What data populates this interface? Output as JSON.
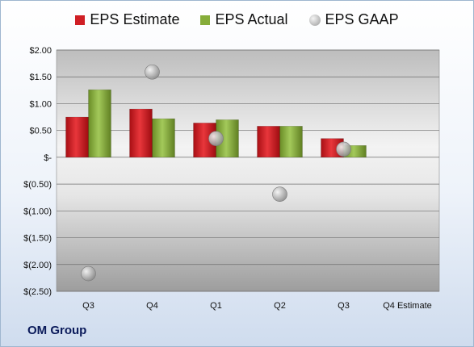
{
  "chart_data": {
    "type": "bar",
    "categories": [
      "Q3",
      "Q4",
      "Q1",
      "Q2",
      "Q3",
      "Q4 Estimate"
    ],
    "series": [
      {
        "name": "EPS Estimate",
        "type": "bar",
        "color": "#d01f25",
        "values": [
          0.75,
          0.9,
          0.64,
          0.58,
          0.35,
          null
        ]
      },
      {
        "name": "EPS Actual",
        "type": "bar",
        "color": "#86ad3a",
        "values": [
          1.26,
          0.72,
          0.7,
          0.58,
          0.22,
          null
        ]
      },
      {
        "name": "EPS GAAP",
        "type": "scatter",
        "color": "#a0a0a0",
        "values": [
          -2.17,
          1.59,
          0.35,
          -0.69,
          0.15,
          null
        ]
      }
    ],
    "yticks": [
      "$2.00",
      "$1.50",
      "$1.00",
      "$0.50",
      "$-",
      "$(0.50)",
      "$(1.00)",
      "$(1.50)",
      "$(2.00)",
      "$(2.50)"
    ],
    "ylim": [
      -2.5,
      2.0
    ],
    "grid": true,
    "legend_position": "top"
  },
  "footer": {
    "company": "OM Group"
  }
}
